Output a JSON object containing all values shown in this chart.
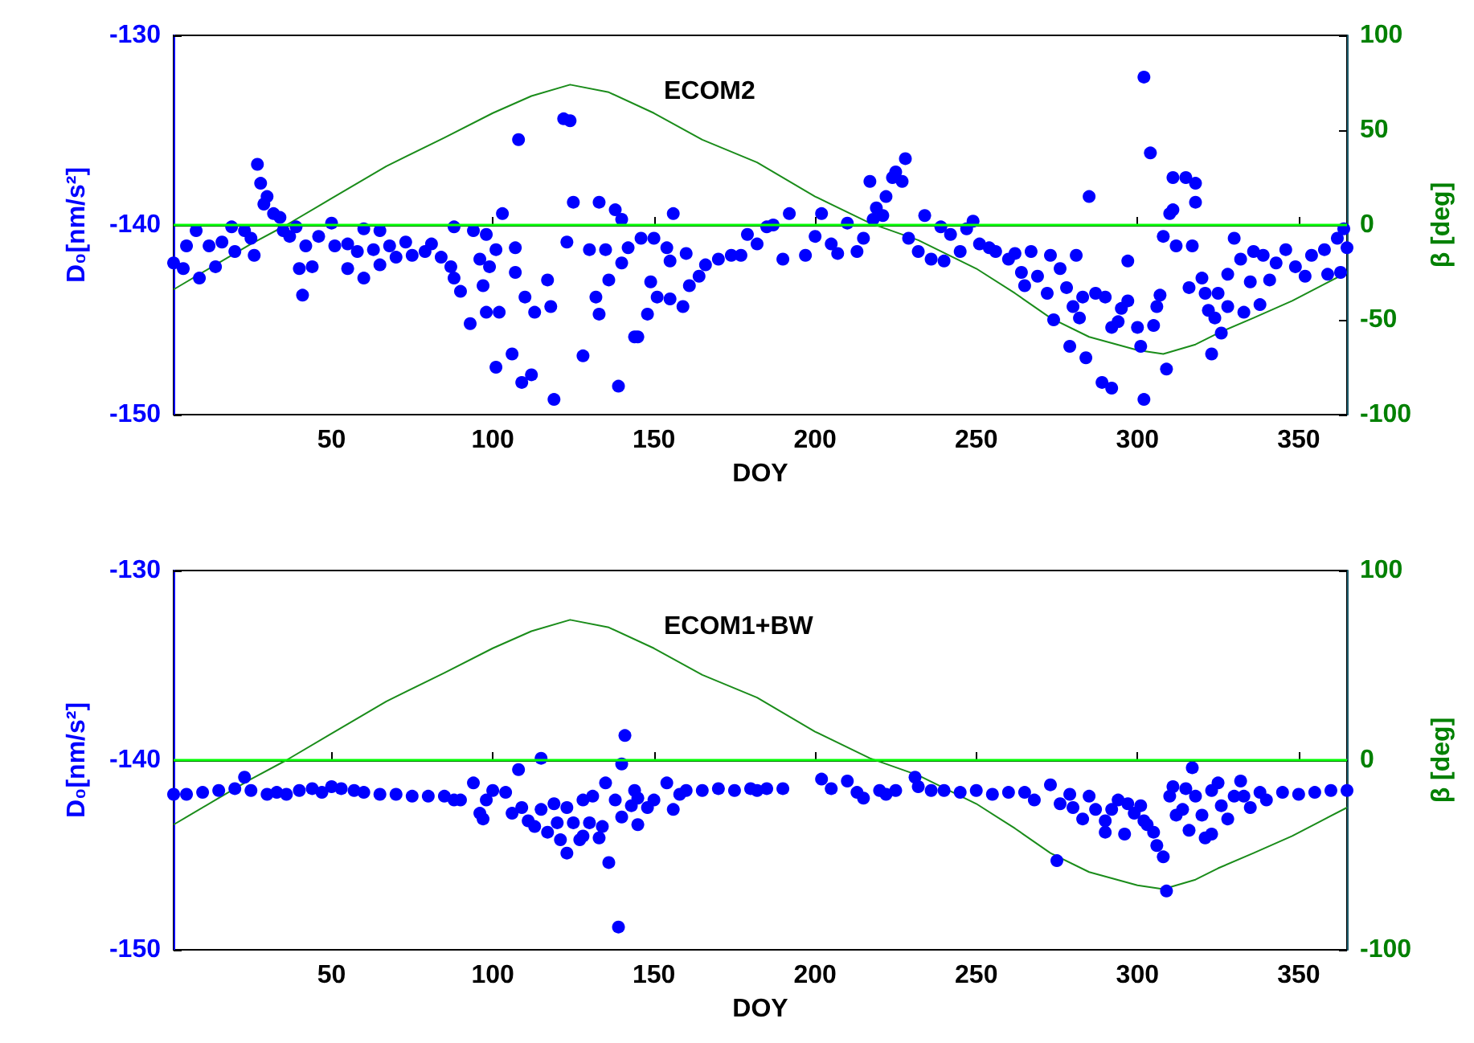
{
  "chart_data": [
    {
      "type": "scatter",
      "title": "ECOM2",
      "xlabel": "DOY",
      "ylabel": "D₀[nm/s²]",
      "y2label": "β [deg]",
      "xlim": [
        1,
        365
      ],
      "xticks": [
        50,
        100,
        150,
        200,
        250,
        300,
        350
      ],
      "ylim": [
        -150,
        -130
      ],
      "yticks": [
        -150,
        -140,
        -130
      ],
      "y2lim": [
        -100,
        100
      ],
      "y2ticks": [
        -100,
        -50,
        0,
        50,
        100
      ],
      "grid": false,
      "ref_lines": [
        {
          "axis": "y2",
          "value": 0,
          "color": "#00ff00"
        }
      ],
      "series": [
        {
          "marker": "circle",
          "color": "#0000ff",
          "x": [
            1,
            4,
            5,
            8,
            9,
            12,
            14,
            16,
            19,
            20,
            23,
            25,
            26,
            27,
            28,
            29,
            30,
            32,
            34,
            35,
            37,
            39,
            40,
            41,
            42,
            44,
            46,
            50,
            51,
            55,
            55,
            58,
            60,
            60,
            63,
            65,
            65,
            68,
            70,
            73,
            75,
            79,
            81,
            84,
            87,
            88,
            88,
            90,
            93,
            94,
            96,
            97,
            98,
            98,
            99,
            101,
            101,
            102,
            103,
            106,
            107,
            107,
            108,
            109,
            110,
            112,
            113,
            117,
            118,
            119,
            122,
            124,
            123,
            125,
            128,
            130,
            132,
            133,
            133,
            135,
            136,
            138,
            139,
            140,
            140,
            142,
            144,
            145,
            146,
            148,
            149,
            150,
            151,
            154,
            155,
            155,
            156,
            159,
            160,
            161,
            164,
            166,
            170,
            174,
            177,
            179,
            182,
            185,
            187,
            190,
            192,
            197,
            200,
            202,
            205,
            207,
            210,
            213,
            215,
            217,
            218,
            219,
            221,
            222,
            224,
            225,
            228,
            227,
            229,
            232,
            234,
            236,
            239,
            240,
            242,
            245,
            247,
            249,
            251,
            254,
            256,
            260,
            262,
            264,
            265,
            267,
            269,
            272,
            273,
            274,
            276,
            278,
            279,
            280,
            281,
            282,
            283,
            284,
            285,
            287,
            289,
            290,
            292,
            292,
            294,
            295,
            297,
            297,
            300,
            301,
            302,
            302,
            304,
            305,
            306,
            307,
            308,
            309,
            310,
            311,
            311,
            312,
            315,
            316,
            317,
            318,
            318,
            320,
            321,
            322,
            323,
            324,
            325,
            326,
            328,
            328,
            330,
            332,
            333,
            335,
            336,
            338,
            339,
            341,
            343,
            346,
            349,
            352,
            354,
            358,
            359,
            362,
            363,
            364,
            365
          ],
          "values": [
            -142.0,
            -142.3,
            -141.1,
            -140.3,
            -142.8,
            -141.1,
            -142.2,
            -140.9,
            -140.1,
            -141.4,
            -140.3,
            -140.7,
            -141.6,
            -136.8,
            -137.8,
            -138.9,
            -138.5,
            -139.4,
            -139.6,
            -140.3,
            -140.6,
            -140.1,
            -142.3,
            -143.7,
            -141.1,
            -142.2,
            -140.6,
            -139.9,
            -141.1,
            -141.0,
            -142.3,
            -141.4,
            -140.2,
            -142.8,
            -141.3,
            -142.1,
            -140.3,
            -141.1,
            -141.7,
            -140.9,
            -141.6,
            -141.4,
            -141.0,
            -141.7,
            -142.2,
            -140.1,
            -142.8,
            -143.5,
            -145.2,
            -140.3,
            -141.8,
            -143.2,
            -140.5,
            -144.6,
            -142.2,
            -147.5,
            -141.3,
            -144.6,
            -139.4,
            -146.8,
            -142.5,
            -141.2,
            -135.5,
            -148.3,
            -143.8,
            -147.9,
            -144.6,
            -142.9,
            -144.3,
            -149.2,
            -134.4,
            -134.5,
            -140.9,
            -138.8,
            -146.9,
            -141.3,
            -143.8,
            -138.8,
            -144.7,
            -141.3,
            -142.9,
            -139.2,
            -148.5,
            -142.0,
            -139.7,
            -141.2,
            -145.9,
            -145.9,
            -140.7,
            -144.7,
            -143.0,
            -140.7,
            -143.8,
            -141.2,
            -141.9,
            -143.9,
            -139.4,
            -144.3,
            -141.5,
            -143.2,
            -142.7,
            -142.1,
            -141.8,
            -141.6,
            -141.6,
            -140.5,
            -141.0,
            -140.1,
            -140.0,
            -141.8,
            -139.4,
            -141.6,
            -140.6,
            -139.4,
            -141.0,
            -141.5,
            -139.9,
            -141.4,
            -140.7,
            -137.7,
            -139.7,
            -139.1,
            -139.5,
            -138.5,
            -137.5,
            -137.2,
            -136.5,
            -137.7,
            -140.7,
            -141.4,
            -139.5,
            -141.8,
            -140.1,
            -141.9,
            -140.5,
            -141.4,
            -140.2,
            -139.8,
            -141.0,
            -141.2,
            -141.4,
            -141.8,
            -141.5,
            -142.5,
            -143.2,
            -141.4,
            -142.7,
            -143.6,
            -141.6,
            -145.0,
            -142.3,
            -143.3,
            -146.4,
            -144.3,
            -141.6,
            -144.9,
            -143.8,
            -147.0,
            -138.5,
            -143.6,
            -148.3,
            -143.8,
            -148.6,
            -145.4,
            -145.1,
            -144.4,
            -141.9,
            -144.0,
            -145.4,
            -146.4,
            -149.2,
            -132.2,
            -136.2,
            -145.3,
            -144.3,
            -143.7,
            -140.6,
            -147.6,
            -139.4,
            -139.2,
            -137.5,
            -141.1,
            -137.5,
            -143.3,
            -141.1,
            -137.8,
            -138.8,
            -142.8,
            -143.6,
            -144.5,
            -146.8,
            -144.9,
            -143.6,
            -145.7,
            -144.3,
            -142.6,
            -140.7,
            -141.8,
            -144.6,
            -143.0,
            -141.4,
            -144.2,
            -141.6,
            -142.9,
            -142.0,
            -141.3,
            -142.2,
            -142.7,
            -141.6,
            -141.3,
            -142.6,
            -140.7,
            -142.5,
            -140.2,
            -141.2
          ]
        },
        {
          "type": "line",
          "axis": "y2",
          "marker": "none",
          "color": "#1a8c1a",
          "x": [
            1,
            15,
            25,
            36,
            50,
            67,
            85,
            100,
            112,
            124,
            136,
            150,
            165,
            182,
            200,
            217,
            232,
            250,
            262,
            273,
            285,
            300,
            308,
            318,
            325,
            336,
            348,
            357,
            365
          ],
          "values": [
            -34,
            -20,
            -10,
            0,
            14,
            31,
            46,
            59,
            68,
            74,
            70,
            59,
            45,
            33,
            15,
            1,
            -8,
            -23,
            -36,
            -49,
            -59,
            -66,
            -68,
            -63,
            -57,
            -49,
            -40,
            -32,
            -25
          ]
        }
      ]
    },
    {
      "type": "scatter",
      "title": "ECOM1+BW",
      "xlabel": "DOY",
      "ylabel": "D₀[nm/s²]",
      "y2label": "β [deg]",
      "xlim": [
        1,
        365
      ],
      "xticks": [
        50,
        100,
        150,
        200,
        250,
        300,
        350
      ],
      "ylim": [
        -150,
        -130
      ],
      "yticks": [
        -150,
        -140,
        -130
      ],
      "y2lim": [
        -100,
        100
      ],
      "y2ticks": [
        -100,
        0,
        100
      ],
      "grid": false,
      "ref_lines": [
        {
          "axis": "y2",
          "value": 0,
          "color": "#00ff00"
        }
      ],
      "series": [
        {
          "marker": "circle",
          "color": "#0000ff",
          "x": [
            1,
            5,
            10,
            15,
            20,
            23,
            25,
            30,
            33,
            36,
            40,
            44,
            47,
            50,
            53,
            57,
            60,
            65,
            70,
            75,
            80,
            85,
            88,
            90,
            94,
            96,
            97,
            98,
            100,
            104,
            106,
            108,
            109,
            111,
            113,
            115,
            115,
            117,
            119,
            120,
            121,
            123,
            123,
            125,
            127,
            128,
            128,
            130,
            131,
            133,
            134,
            135,
            136,
            138,
            139,
            140,
            140,
            141,
            143,
            144,
            145,
            145,
            148,
            150,
            154,
            156,
            158,
            160,
            165,
            170,
            175,
            180,
            185,
            182,
            190,
            202,
            205,
            210,
            213,
            215,
            220,
            222,
            225,
            231,
            232,
            236,
            240,
            245,
            250,
            255,
            260,
            265,
            268,
            273,
            275,
            276,
            279,
            280,
            283,
            285,
            287,
            290,
            290,
            292,
            294,
            296,
            297,
            299,
            301,
            302,
            303,
            305,
            306,
            308,
            309,
            310,
            311,
            312,
            314,
            315,
            316,
            317,
            318,
            320,
            321,
            323,
            323,
            325,
            326,
            328,
            330,
            332,
            333,
            335,
            338,
            340,
            345,
            350,
            355,
            360,
            365
          ],
          "values": [
            -141.8,
            -141.8,
            -141.7,
            -141.6,
            -141.5,
            -140.9,
            -141.6,
            -141.8,
            -141.7,
            -141.8,
            -141.6,
            -141.5,
            -141.7,
            -141.4,
            -141.5,
            -141.6,
            -141.7,
            -141.8,
            -141.8,
            -141.9,
            -141.9,
            -141.9,
            -142.1,
            -142.1,
            -141.2,
            -142.8,
            -143.1,
            -142.1,
            -141.6,
            -141.7,
            -142.8,
            -140.5,
            -142.5,
            -143.2,
            -143.5,
            -139.9,
            -142.6,
            -143.8,
            -142.3,
            -143.3,
            -144.2,
            -144.9,
            -142.5,
            -143.3,
            -144.2,
            -142.1,
            -144.0,
            -143.3,
            -141.9,
            -144.1,
            -143.5,
            -141.2,
            -145.4,
            -142.1,
            -148.8,
            -143.0,
            -140.2,
            -138.7,
            -142.4,
            -141.6,
            -143.4,
            -142.0,
            -142.5,
            -142.1,
            -141.2,
            -142.6,
            -141.8,
            -141.6,
            -141.6,
            -141.5,
            -141.6,
            -141.5,
            -141.5,
            -141.6,
            -141.5,
            -141.0,
            -141.5,
            -141.1,
            -141.7,
            -142.0,
            -141.6,
            -141.8,
            -141.6,
            -140.9,
            -141.4,
            -141.6,
            -141.6,
            -141.7,
            -141.6,
            -141.8,
            -141.7,
            -141.7,
            -142.1,
            -141.3,
            -145.3,
            -142.3,
            -141.8,
            -142.5,
            -143.1,
            -141.9,
            -142.6,
            -143.2,
            -143.8,
            -142.6,
            -142.1,
            -143.9,
            -142.3,
            -142.8,
            -142.4,
            -143.2,
            -143.4,
            -143.8,
            -144.5,
            -145.1,
            -146.9,
            -141.9,
            -141.4,
            -142.9,
            -142.6,
            -141.5,
            -143.7,
            -140.4,
            -141.9,
            -142.9,
            -144.1,
            -143.9,
            -141.6,
            -141.2,
            -142.4,
            -143.1,
            -141.9,
            -141.1,
            -141.9,
            -142.5,
            -141.7,
            -142.1,
            -141.7,
            -141.8,
            -141.7,
            -141.6,
            -141.6
          ]
        },
        {
          "type": "line",
          "axis": "y2",
          "marker": "none",
          "color": "#1a8c1a",
          "x": [
            1,
            15,
            25,
            36,
            50,
            67,
            85,
            100,
            112,
            124,
            136,
            150,
            165,
            182,
            200,
            217,
            232,
            250,
            262,
            273,
            285,
            300,
            308,
            318,
            325,
            336,
            348,
            357,
            365
          ],
          "values": [
            -34,
            -20,
            -10,
            0,
            14,
            31,
            46,
            59,
            68,
            74,
            70,
            59,
            45,
            33,
            15,
            1,
            -8,
            -23,
            -36,
            -49,
            -59,
            -66,
            -68,
            -63,
            -57,
            -49,
            -40,
            -32,
            -25
          ]
        }
      ]
    }
  ]
}
